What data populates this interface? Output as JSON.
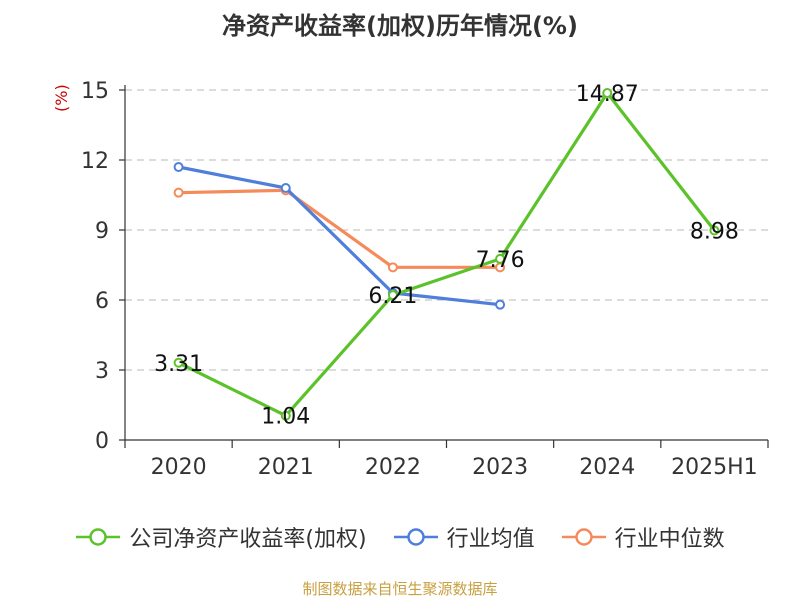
{
  "chart_data": {
    "type": "line",
    "title": "净资产收益率(加权)历年情况(%)",
    "ylabel": "(%)",
    "categories": [
      "2020",
      "2021",
      "2022",
      "2023",
      "2024",
      "2025H1"
    ],
    "ylim": [
      0,
      15
    ],
    "yticks": [
      0,
      3,
      6,
      9,
      12,
      15
    ],
    "grid": true,
    "legend_position": "bottom",
    "series": [
      {
        "name": "公司净资产收益率(加权)",
        "color": "#5cc22a",
        "values": [
          3.31,
          1.04,
          6.21,
          7.76,
          14.87,
          8.98
        ],
        "labels": [
          "3.31",
          "1.04",
          "6.21",
          "7.76",
          "14.87",
          "8.98"
        ]
      },
      {
        "name": "行业均值",
        "color": "#4f7fdb",
        "values": [
          11.7,
          10.8,
          6.3,
          5.8,
          null,
          null
        ]
      },
      {
        "name": "行业中位数",
        "color": "#f58a5b",
        "values": [
          10.6,
          10.7,
          7.4,
          7.4,
          null,
          null
        ]
      }
    ]
  },
  "source": "制图数据来自恒生聚源数据库"
}
